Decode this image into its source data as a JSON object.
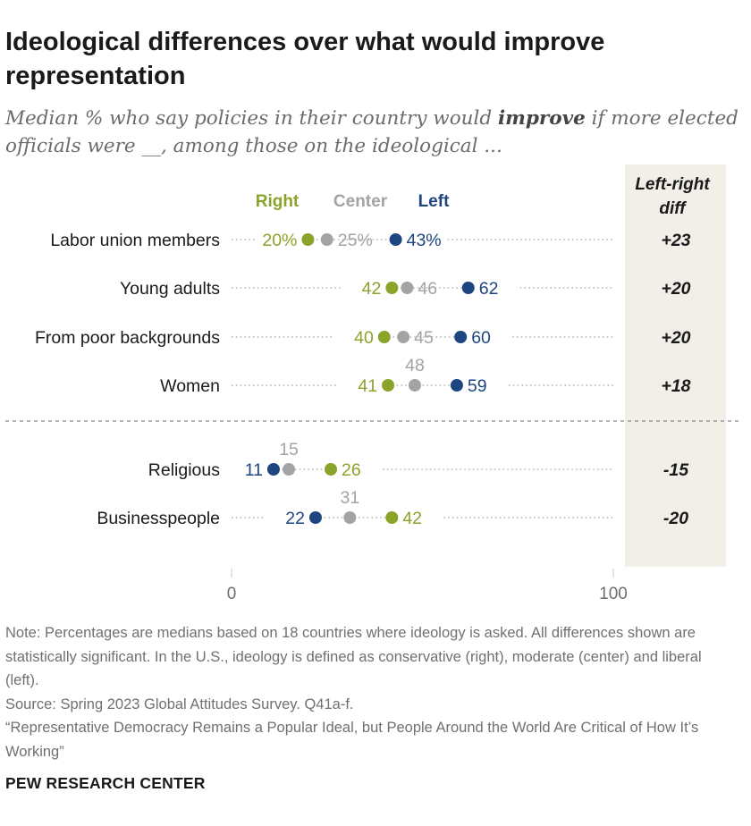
{
  "header": {
    "title": "Ideological differences over what would improve representation",
    "subtitle_pre": "Median % who say policies in their country would ",
    "subtitle_bold": "improve",
    "subtitle_post": " if more elected officials were __, among those on the ideological ..."
  },
  "legend": {
    "right_label": "Right",
    "center_label": "Center",
    "left_label": "Left"
  },
  "diff_column": {
    "header_line1": "Left-right",
    "header_line2": "diff"
  },
  "colors": {
    "right": "#8aa329",
    "center": "#a3a3a3",
    "left": "#1d4580",
    "diff_bg": "#f1efe8",
    "dotted_line": "#b5b5b5"
  },
  "chart_data": {
    "type": "dot_plot",
    "title": "Ideological differences over what would improve representation",
    "x_axis": {
      "min": 0,
      "max": 100,
      "tick_labels": [
        "0",
        "100"
      ]
    },
    "series": [
      {
        "name": "Right",
        "key": "right"
      },
      {
        "name": "Center",
        "key": "center"
      },
      {
        "name": "Left",
        "key": "left"
      }
    ],
    "rows": [
      {
        "label": "Labor union members",
        "right": 20,
        "center": 25,
        "left": 43,
        "right_text": "20%",
        "center_text": "25%",
        "left_text": "43%",
        "diff": "+23",
        "group": 1
      },
      {
        "label": "Young adults",
        "right": 42,
        "center": 46,
        "left": 62,
        "right_text": "42",
        "center_text": "46",
        "left_text": "62",
        "diff": "+20",
        "group": 1
      },
      {
        "label": "From poor backgrounds",
        "right": 40,
        "center": 45,
        "left": 60,
        "right_text": "40",
        "center_text": "45",
        "left_text": "60",
        "diff": "+20",
        "group": 1
      },
      {
        "label": "Women",
        "right": 41,
        "center": 48,
        "left": 59,
        "right_text": "41",
        "center_text": "48",
        "left_text": "59",
        "diff": "+18",
        "group": 1
      },
      {
        "label": "Religious",
        "right": 26,
        "center": 15,
        "left": 11,
        "right_text": "26",
        "center_text": "15",
        "left_text": "11",
        "diff": "-15",
        "group": 2
      },
      {
        "label": "Businesspeople",
        "right": 42,
        "center": 31,
        "left": 22,
        "right_text": "42",
        "center_text": "31",
        "left_text": "22",
        "diff": "-20",
        "group": 2
      }
    ]
  },
  "notes": {
    "note": "Note: Percentages are medians based on 18 countries where ideology is asked. All differences shown are statistically significant. In the U.S., ideology is defined as conservative (right), moderate (center) and liberal (left).",
    "source": "Source: Spring 2023 Global Attitudes Survey. Q41a-f.",
    "report": "“Representative Democracy Remains a Popular Ideal, but People Around the World Are Critical of How It’s Working”",
    "org": "PEW RESEARCH CENTER"
  }
}
